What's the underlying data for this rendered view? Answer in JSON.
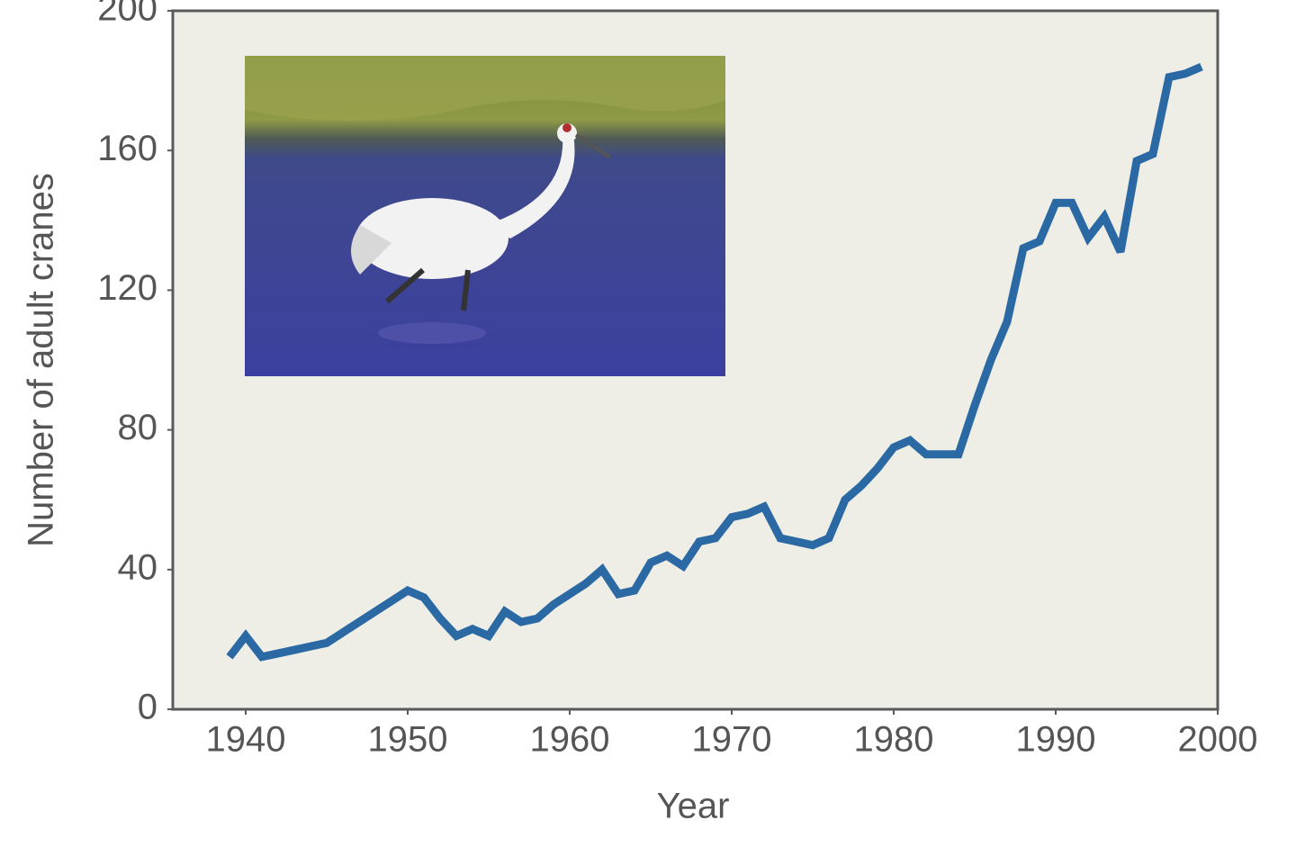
{
  "chart_data": {
    "type": "line",
    "x_label": "Year",
    "y_label": "Number of adult cranes",
    "x": [
      1939,
      1940,
      1941,
      1942,
      1943,
      1944,
      1945,
      1946,
      1947,
      1948,
      1949,
      1950,
      1951,
      1952,
      1953,
      1954,
      1955,
      1956,
      1957,
      1958,
      1959,
      1960,
      1961,
      1962,
      1963,
      1964,
      1965,
      1966,
      1967,
      1968,
      1969,
      1970,
      1971,
      1972,
      1973,
      1974,
      1975,
      1976,
      1977,
      1978,
      1979,
      1980,
      1981,
      1982,
      1983,
      1984,
      1985,
      1986,
      1987,
      1988,
      1989,
      1990,
      1991,
      1992,
      1993,
      1994,
      1995,
      1996,
      1997,
      1998,
      1999
    ],
    "series": [
      {
        "name": "Adult cranes",
        "color": "#2a69a3",
        "values": [
          15,
          21,
          15,
          16,
          17,
          18,
          19,
          22,
          25,
          28,
          31,
          34,
          32,
          26,
          21,
          23,
          21,
          28,
          25,
          26,
          30,
          33,
          36,
          40,
          33,
          34,
          42,
          44,
          41,
          48,
          49,
          55,
          56,
          58,
          49,
          48,
          47,
          49,
          60,
          64,
          69,
          75,
          77,
          73,
          73,
          73,
          87,
          100,
          111,
          132,
          134,
          145,
          145,
          135,
          141,
          131,
          157,
          159,
          181,
          182,
          184
        ]
      }
    ],
    "xlim": [
      1935.5,
      2000
    ],
    "ylim": [
      0,
      200
    ],
    "xticks": [
      1940,
      1950,
      1960,
      1970,
      1980,
      1990,
      2000
    ],
    "yticks": [
      0,
      40,
      80,
      120,
      160,
      200
    ],
    "grid": false
  }
}
